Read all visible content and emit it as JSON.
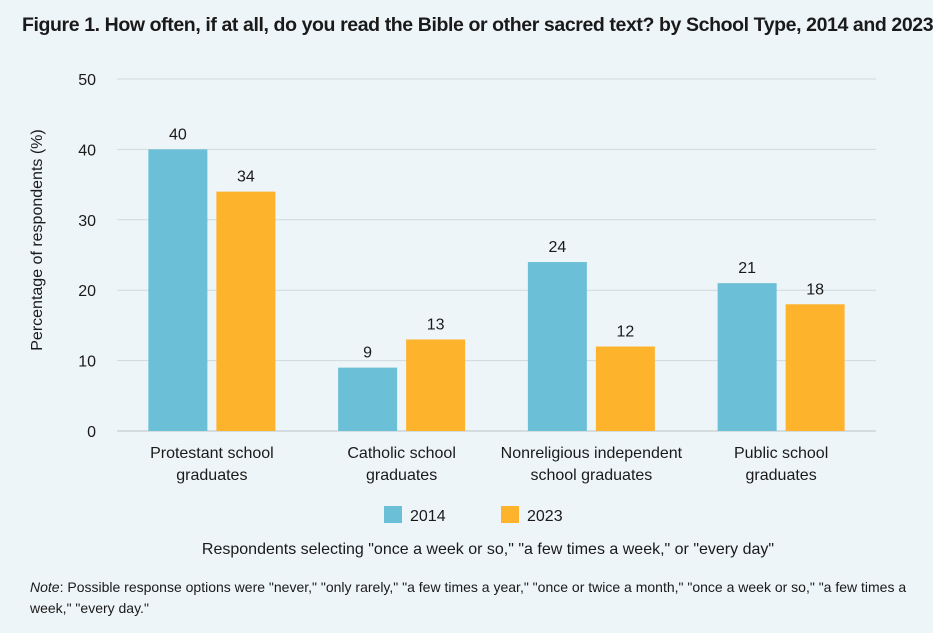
{
  "title": "Figure 1. How often, if at all, do you read the Bible or other sacred text? by School Type, 2014 and 2023",
  "chart_data": {
    "type": "bar",
    "categories": [
      [
        "Protestant school",
        "graduates"
      ],
      [
        "Catholic school",
        "graduates"
      ],
      [
        "Nonreligious independent",
        "school graduates"
      ],
      [
        "Public school",
        "graduates"
      ]
    ],
    "series": [
      {
        "name": "2014",
        "values": [
          40,
          9,
          24,
          21
        ],
        "color": "#6bbfd6"
      },
      {
        "name": "2023",
        "values": [
          34,
          13,
          12,
          18
        ],
        "color": "#fdb32c"
      }
    ],
    "ylabel": "Percentage of respondents (%)",
    "xlabel": "Respondents selecting \"once a week or so,\" \"a few times a week,\" or \"every day\"",
    "ylim": [
      0,
      50
    ],
    "yticks": [
      0,
      10,
      20,
      30,
      40,
      50
    ],
    "grid": true,
    "legend": "bottom-center"
  },
  "note": {
    "label": "Note",
    "text": ": Possible response options were \"never,\" \"only rarely,\" \"a few times a year,\" \"once or twice a month,\" \"once a week or so,\" \"a few times a week,\" \"every day.\""
  }
}
